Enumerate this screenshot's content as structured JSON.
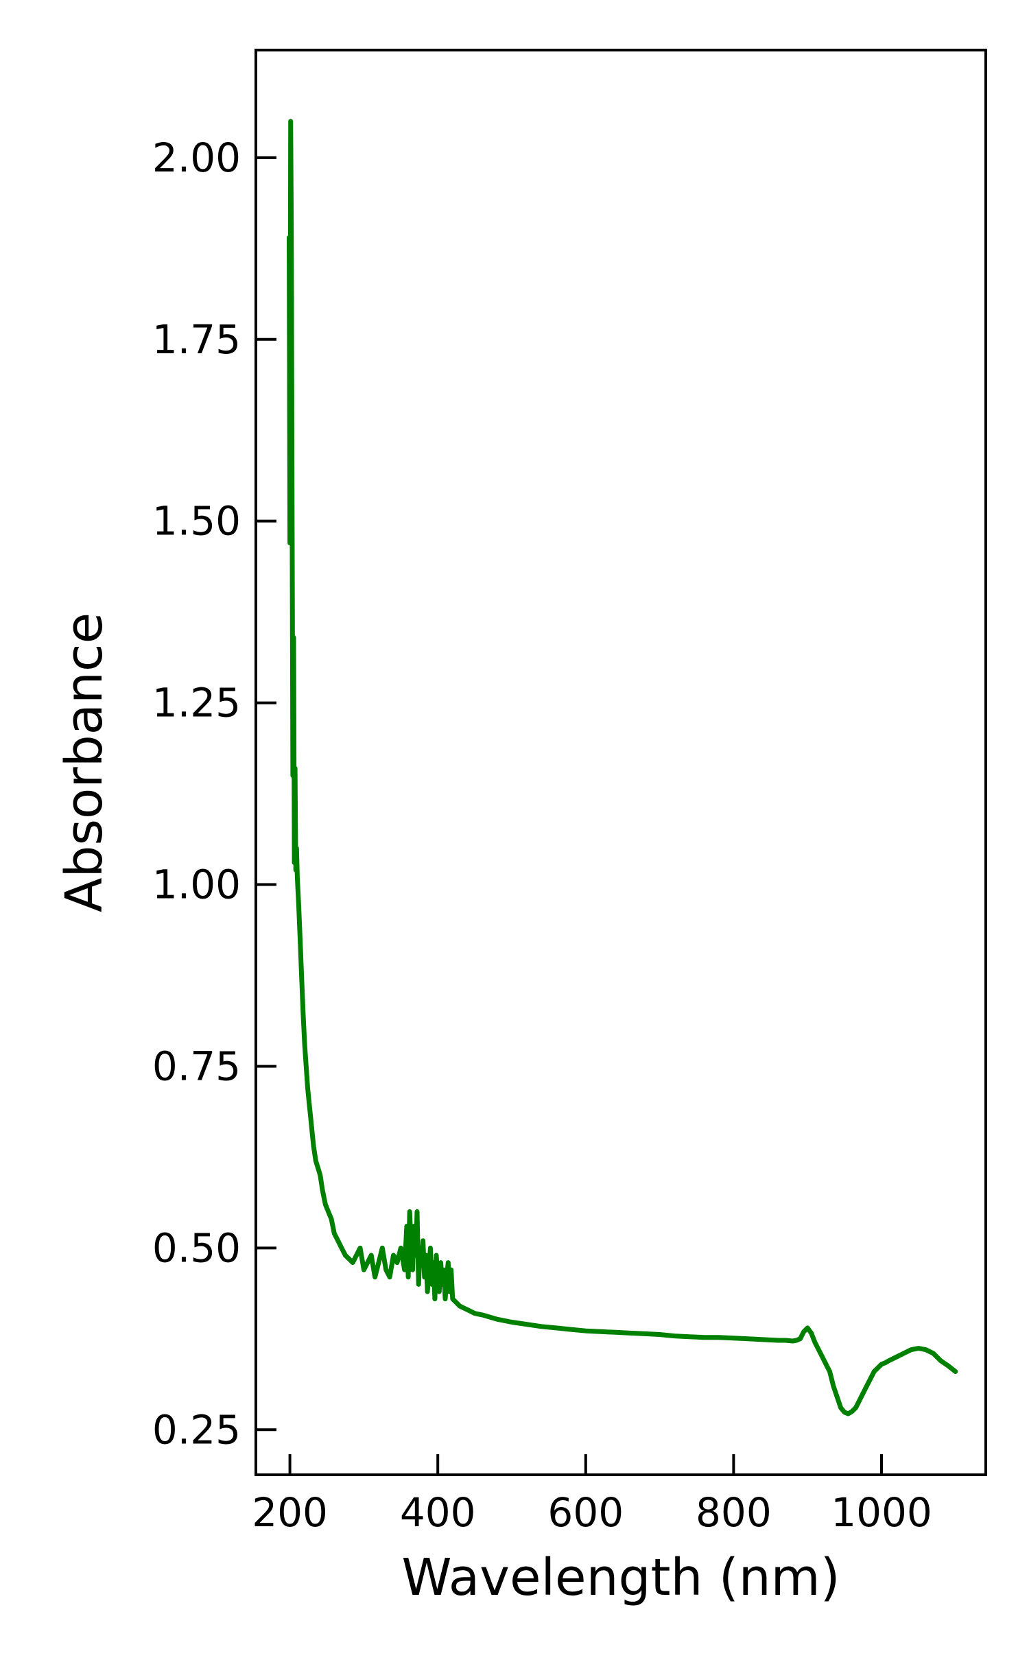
{
  "chart_data": {
    "type": "line",
    "title": "",
    "xlabel": "Wavelength (nm)",
    "ylabel": "Absorbance",
    "xlim": [
      154,
      1141
    ],
    "ylim": [
      0.188,
      2.148
    ],
    "x_ticks": [
      200,
      400,
      600,
      800,
      1000
    ],
    "x_tick_labels": [
      "200",
      "400",
      "600",
      "800",
      "1000"
    ],
    "y_ticks": [
      0.25,
      0.5,
      0.75,
      1.0,
      1.25,
      1.5,
      1.75,
      2.0
    ],
    "y_tick_labels": [
      "0.25",
      "0.50",
      "0.75",
      "1.00",
      "1.25",
      "1.50",
      "1.75",
      "2.00"
    ],
    "tick_direction": "in",
    "grid": false,
    "legend": "none",
    "series": [
      {
        "color": "#008000",
        "x": [
          199,
          200,
          201,
          202,
          203,
          204,
          205,
          206,
          207,
          208,
          209,
          210,
          212,
          214,
          216,
          218,
          220,
          222,
          224,
          226,
          228,
          230,
          232,
          235,
          238,
          241,
          244,
          248,
          252,
          256,
          260,
          265,
          270,
          275,
          280,
          285,
          290,
          295,
          300,
          305,
          310,
          315,
          320,
          325,
          330,
          335,
          340,
          345,
          350,
          355,
          358,
          360,
          362,
          364,
          366,
          368,
          370,
          372,
          374,
          376,
          378,
          380,
          382,
          384,
          386,
          388,
          390,
          392,
          394,
          396,
          398,
          400,
          402,
          404,
          406,
          408,
          410,
          412,
          414,
          416,
          418,
          420,
          425,
          430,
          440,
          450,
          460,
          470,
          480,
          490,
          500,
          520,
          540,
          560,
          580,
          600,
          620,
          640,
          660,
          680,
          700,
          720,
          740,
          760,
          780,
          800,
          820,
          840,
          860,
          870,
          880,
          885,
          890,
          895,
          900,
          905,
          910,
          915,
          920,
          925,
          930,
          935,
          940,
          945,
          950,
          955,
          960,
          965,
          970,
          975,
          980,
          985,
          990,
          995,
          1000,
          1005,
          1010,
          1020,
          1030,
          1040,
          1050,
          1060,
          1070,
          1080,
          1090,
          1100
        ],
        "y": [
          1.89,
          1.47,
          2.05,
          1.9,
          1.52,
          1.15,
          1.34,
          1.03,
          1.16,
          1.02,
          1.05,
          1.01,
          0.97,
          0.92,
          0.87,
          0.82,
          0.78,
          0.75,
          0.72,
          0.7,
          0.68,
          0.66,
          0.64,
          0.62,
          0.61,
          0.6,
          0.58,
          0.56,
          0.55,
          0.54,
          0.52,
          0.51,
          0.5,
          0.49,
          0.485,
          0.48,
          0.49,
          0.5,
          0.47,
          0.48,
          0.49,
          0.46,
          0.48,
          0.5,
          0.47,
          0.46,
          0.49,
          0.48,
          0.5,
          0.47,
          0.53,
          0.46,
          0.55,
          0.5,
          0.47,
          0.53,
          0.49,
          0.55,
          0.45,
          0.5,
          0.48,
          0.51,
          0.46,
          0.49,
          0.44,
          0.47,
          0.5,
          0.45,
          0.48,
          0.43,
          0.49,
          0.46,
          0.44,
          0.48,
          0.45,
          0.47,
          0.43,
          0.46,
          0.48,
          0.44,
          0.47,
          0.43,
          0.425,
          0.42,
          0.415,
          0.41,
          0.408,
          0.405,
          0.402,
          0.4,
          0.398,
          0.395,
          0.392,
          0.39,
          0.388,
          0.386,
          0.385,
          0.384,
          0.383,
          0.382,
          0.381,
          0.379,
          0.378,
          0.377,
          0.377,
          0.376,
          0.375,
          0.374,
          0.373,
          0.373,
          0.372,
          0.373,
          0.375,
          0.385,
          0.39,
          0.383,
          0.37,
          0.36,
          0.35,
          0.34,
          0.33,
          0.31,
          0.295,
          0.28,
          0.274,
          0.272,
          0.275,
          0.28,
          0.29,
          0.3,
          0.31,
          0.32,
          0.33,
          0.335,
          0.34,
          0.342,
          0.345,
          0.35,
          0.355,
          0.36,
          0.362,
          0.36,
          0.355,
          0.345,
          0.338,
          0.33
        ]
      }
    ]
  }
}
